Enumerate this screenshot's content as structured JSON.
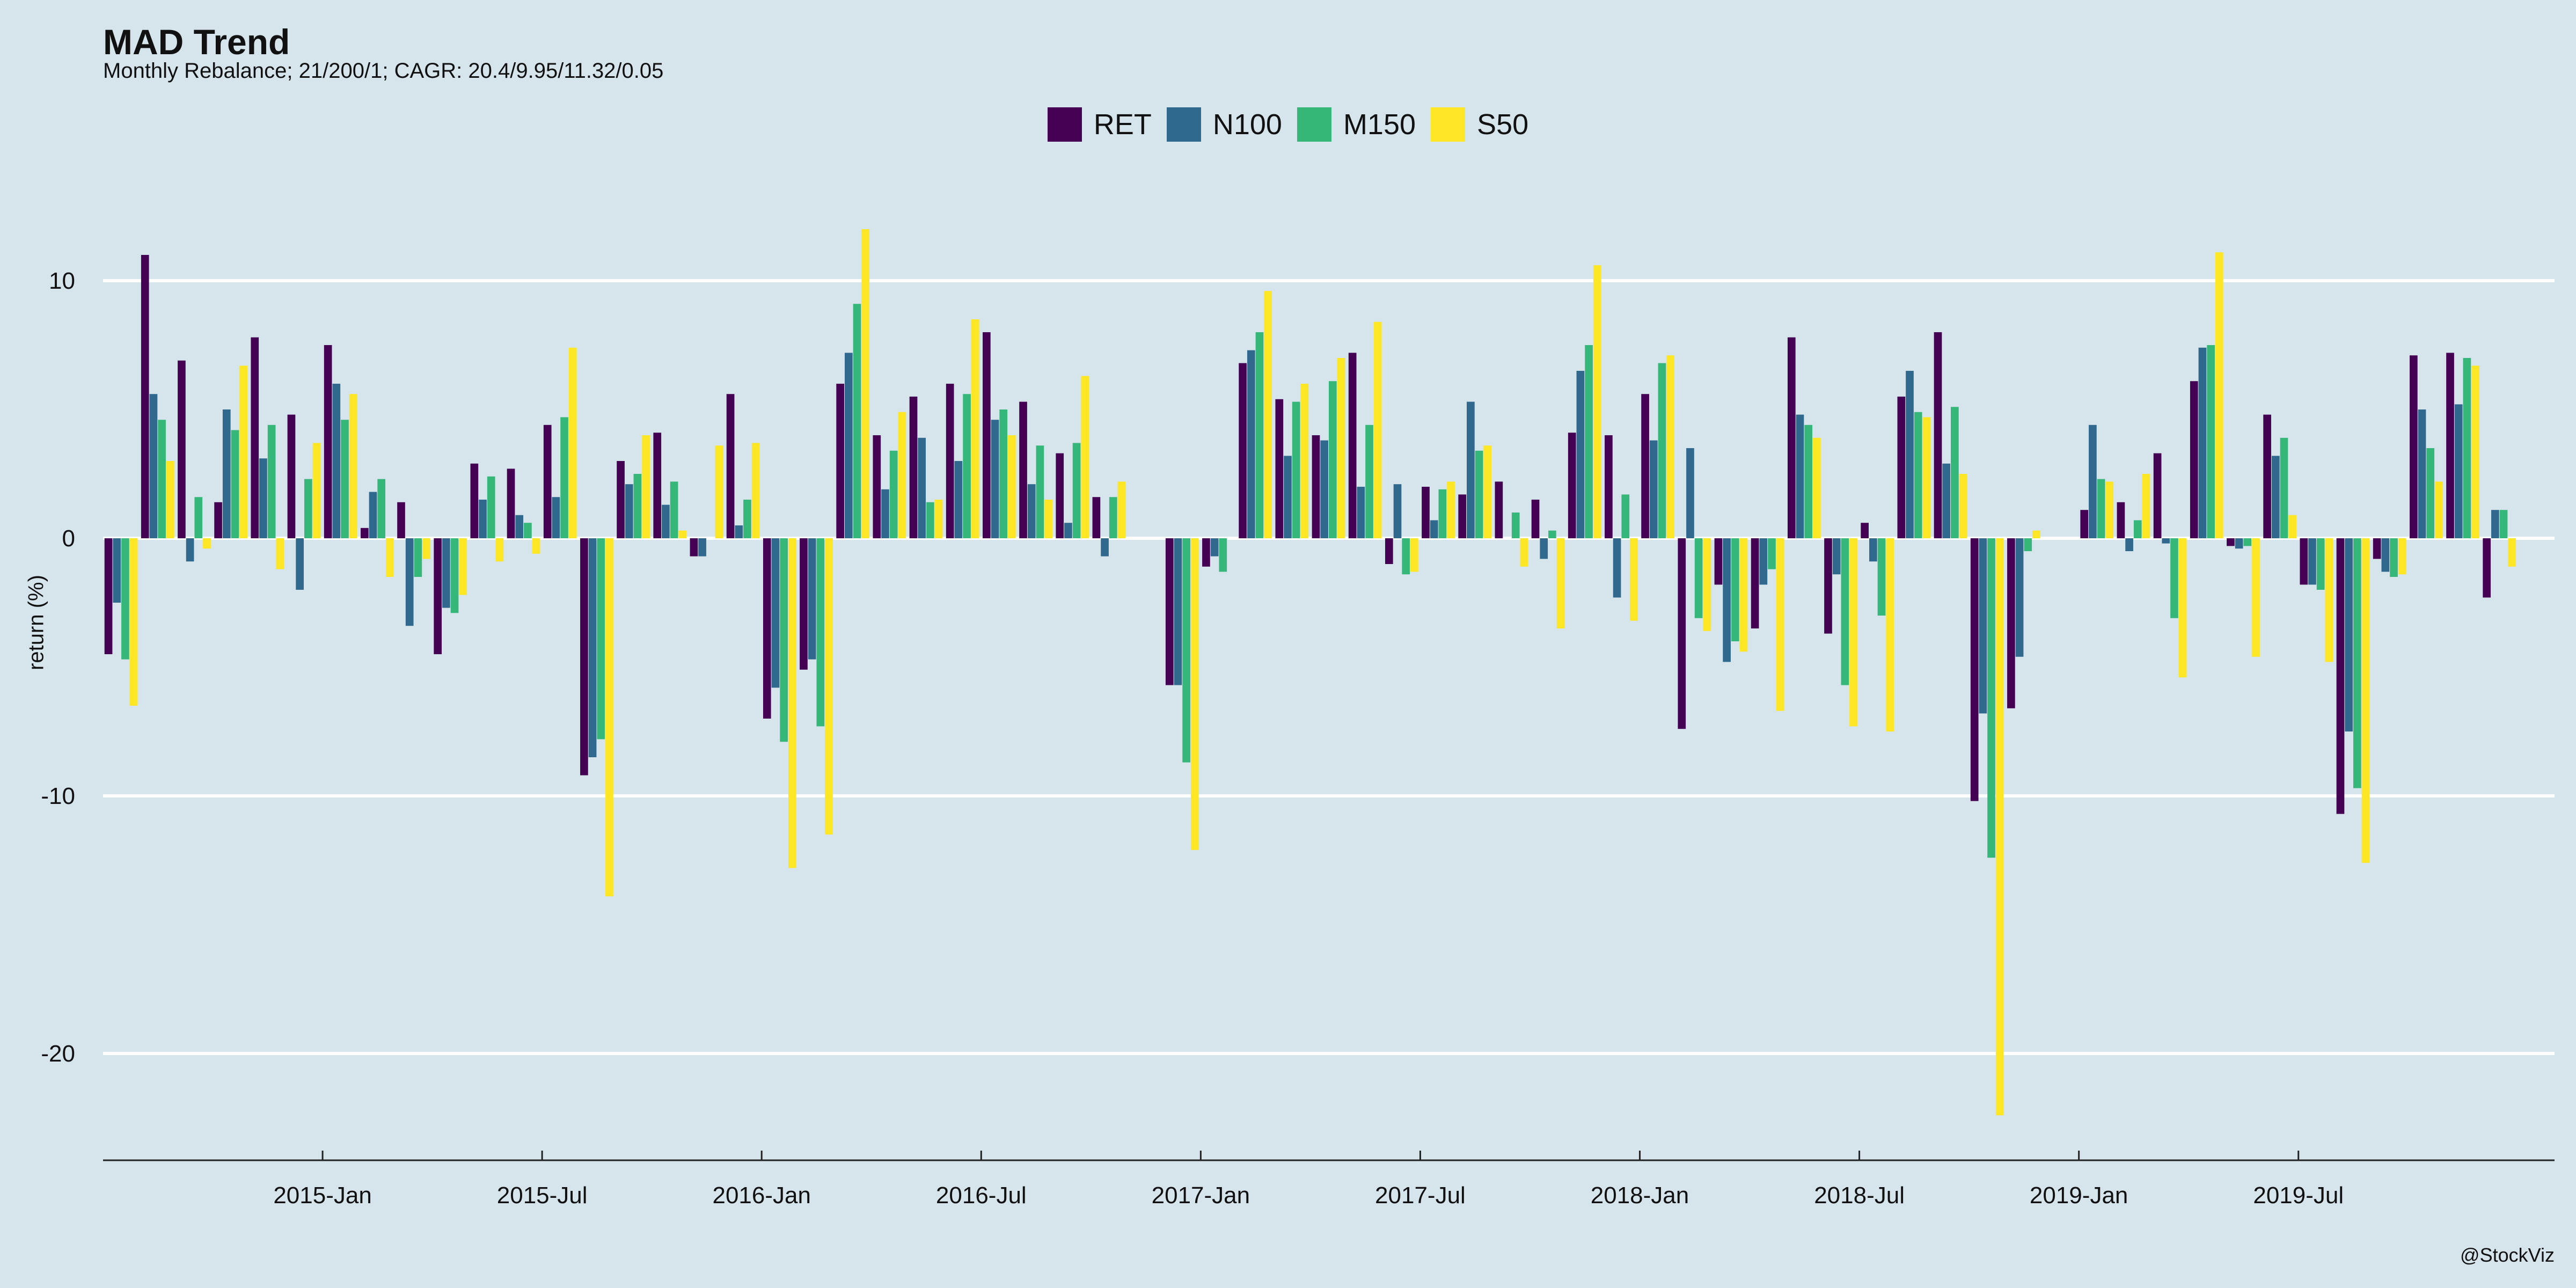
{
  "chart_data": {
    "type": "bar",
    "title": "MAD Trend",
    "subtitle": "Monthly Rebalance; 21/200/1; CAGR: 20.4/9.95/11.32/0.05",
    "ylabel": "return (%)",
    "xlabel": "",
    "ylim": [
      -24,
      14
    ],
    "yticks": [
      10,
      0,
      -10,
      -20
    ],
    "grid": true,
    "legend_position": "top-center",
    "categories": [
      "2014-07",
      "2014-08",
      "2014-09",
      "2014-10",
      "2014-11",
      "2014-12",
      "2015-01",
      "2015-02",
      "2015-03",
      "2015-04",
      "2015-05",
      "2015-06",
      "2015-07",
      "2015-08",
      "2015-09",
      "2015-10",
      "2015-11",
      "2015-12",
      "2016-01",
      "2016-02",
      "2016-03",
      "2016-04",
      "2016-05",
      "2016-06",
      "2016-07",
      "2016-08",
      "2016-09",
      "2016-10",
      "2016-11",
      "2016-12",
      "2017-01",
      "2017-02",
      "2017-03",
      "2017-04",
      "2017-05",
      "2017-06",
      "2017-07",
      "2017-08",
      "2017-09",
      "2017-10",
      "2017-11",
      "2017-12",
      "2018-01",
      "2018-02",
      "2018-03",
      "2018-04",
      "2018-05",
      "2018-06",
      "2018-07",
      "2018-08",
      "2018-09",
      "2018-10",
      "2018-11",
      "2018-12",
      "2019-01",
      "2019-02",
      "2019-03",
      "2019-04",
      "2019-05",
      "2019-06",
      "2019-07",
      "2019-08",
      "2019-09",
      "2019-10",
      "2019-11",
      "2019-12",
      "2020-01"
    ],
    "xtick_labels": [
      {
        "category": "2015-01",
        "label": "2015-Jan"
      },
      {
        "category": "2015-07",
        "label": "2015-Jul"
      },
      {
        "category": "2016-01",
        "label": "2016-Jan"
      },
      {
        "category": "2016-07",
        "label": "2016-Jul"
      },
      {
        "category": "2017-01",
        "label": "2017-Jan"
      },
      {
        "category": "2017-07",
        "label": "2017-Jul"
      },
      {
        "category": "2018-01",
        "label": "2018-Jan"
      },
      {
        "category": "2018-07",
        "label": "2018-Jul"
      },
      {
        "category": "2019-01",
        "label": "2019-Jan"
      },
      {
        "category": "2019-07",
        "label": "2019-Jul"
      }
    ],
    "series": [
      {
        "name": "RET",
        "color": "#440154",
        "values": [
          -4.5,
          11.0,
          6.9,
          1.4,
          7.8,
          4.8,
          7.5,
          0.4,
          1.4,
          -4.5,
          2.9,
          2.7,
          4.4,
          -9.2,
          3.0,
          4.1,
          -0.7,
          5.6,
          -7.0,
          -5.1,
          6.0,
          4.0,
          5.5,
          6.0,
          8.0,
          5.3,
          3.3,
          1.6,
          0.0,
          -5.7,
          -1.1,
          6.8,
          5.4,
          4.0,
          7.2,
          -1.0,
          2.0,
          1.7,
          2.2,
          1.5,
          4.1,
          4.0,
          5.6,
          -7.4,
          -1.8,
          -3.5,
          7.8,
          -3.7,
          0.6,
          5.5,
          8.0,
          -10.2,
          -6.6,
          0.0,
          1.1,
          1.4,
          3.3,
          6.1,
          -0.3,
          4.8,
          -1.8,
          -10.7,
          -0.8,
          7.1,
          7.2,
          -2.3,
          0.0
        ]
      },
      {
        "name": "N100",
        "color": "#31688e",
        "values": [
          -2.5,
          5.6,
          -0.9,
          5.0,
          3.1,
          -2.0,
          6.0,
          1.8,
          -3.4,
          -2.7,
          1.5,
          0.9,
          1.6,
          -8.5,
          2.1,
          1.3,
          -0.7,
          0.5,
          -5.8,
          -4.7,
          7.2,
          1.9,
          3.9,
          3.0,
          4.6,
          2.1,
          0.6,
          -0.7,
          0.0,
          -5.7,
          -0.7,
          7.3,
          3.2,
          3.8,
          2.0,
          2.1,
          0.7,
          5.3,
          0.0,
          -0.8,
          6.5,
          -2.3,
          3.8,
          3.5,
          -4.8,
          -1.8,
          4.8,
          -1.4,
          -0.9,
          6.5,
          2.9,
          -6.8,
          -4.6,
          0.0,
          4.4,
          -0.5,
          -0.2,
          7.4,
          -0.4,
          3.2,
          -1.8,
          -7.5,
          -1.3,
          5.0,
          5.2,
          1.1,
          0.0
        ]
      },
      {
        "name": "M150",
        "color": "#35b779",
        "values": [
          -4.7,
          4.6,
          1.6,
          4.2,
          4.4,
          2.3,
          4.6,
          2.3,
          -1.5,
          -2.9,
          2.4,
          0.6,
          4.7,
          -7.8,
          2.5,
          2.2,
          0.0,
          1.5,
          -7.9,
          -7.3,
          9.1,
          3.4,
          1.4,
          5.6,
          5.0,
          3.6,
          3.7,
          1.6,
          0.0,
          -8.7,
          -1.3,
          8.0,
          5.3,
          6.1,
          4.4,
          -1.4,
          1.9,
          3.4,
          1.0,
          0.3,
          7.5,
          1.7,
          6.8,
          -3.1,
          -4.0,
          -1.2,
          4.4,
          -5.7,
          -3.0,
          4.9,
          5.1,
          -12.4,
          -0.5,
          0.0,
          2.3,
          0.7,
          -3.1,
          7.5,
          -0.3,
          3.9,
          -2.0,
          -9.7,
          -1.5,
          3.5,
          7.0,
          1.1,
          0.0
        ]
      },
      {
        "name": "S50",
        "color": "#fde725",
        "values": [
          -6.5,
          3.0,
          -0.4,
          6.7,
          -1.2,
          3.7,
          5.6,
          -1.5,
          -0.8,
          -2.2,
          -0.9,
          -0.6,
          7.4,
          -13.9,
          4.0,
          0.3,
          3.6,
          3.7,
          -12.8,
          -11.5,
          12.0,
          4.9,
          1.5,
          8.5,
          4.0,
          1.5,
          6.3,
          2.2,
          0.0,
          -12.1,
          0.0,
          9.6,
          6.0,
          7.0,
          8.4,
          -1.3,
          2.2,
          3.6,
          -1.1,
          -3.5,
          10.6,
          -3.2,
          7.1,
          -3.6,
          -4.4,
          -6.7,
          3.9,
          -7.3,
          -7.5,
          4.7,
          2.5,
          -22.4,
          0.3,
          0.0,
          2.2,
          2.5,
          -5.4,
          11.1,
          -4.6,
          0.9,
          -4.8,
          -12.6,
          -1.4,
          2.2,
          6.7,
          -1.1,
          0.0
        ]
      }
    ]
  },
  "credit": "@StockViz"
}
